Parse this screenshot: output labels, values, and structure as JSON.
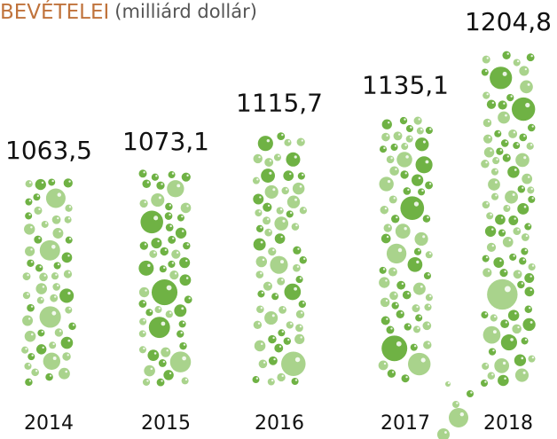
{
  "chart_data": {
    "type": "bubble-column",
    "title": "BEVÉTELEI",
    "subtitle": "(milliárd dollár)",
    "categories": [
      "2014",
      "2015",
      "2016",
      "2017",
      "2018"
    ],
    "values": [
      1063.5,
      1073.1,
      1115.7,
      1135.1,
      1204.8
    ],
    "value_labels": [
      "1063,5",
      "1073,1",
      "1115,7",
      "1135,1",
      "1204,8"
    ],
    "colors": [
      "#6fb244",
      "#a9d38c"
    ]
  }
}
